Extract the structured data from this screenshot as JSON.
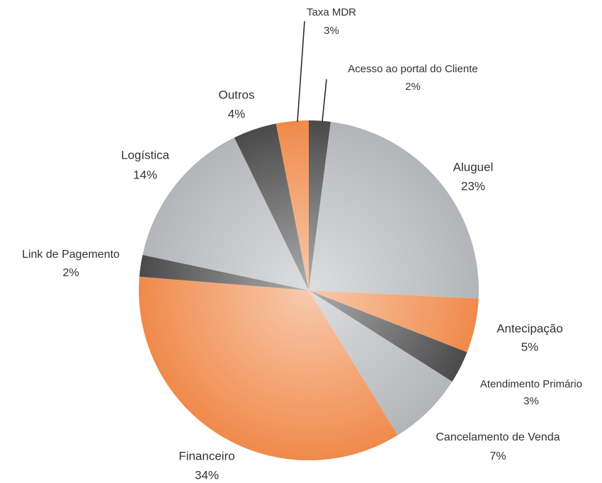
{
  "chart_data": {
    "type": "pie",
    "categories": [
      "Acesso ao portal do Cliente",
      "Aluguel",
      "Antecipação",
      "Atendimento Primário",
      "Cancelamento de Venda",
      "Financeiro",
      "Link de Pagemento",
      "Logística",
      "Outros",
      "Taxa MDR"
    ],
    "values": [
      2,
      23,
      5,
      3,
      7,
      34,
      2,
      14,
      4,
      3
    ],
    "value_labels": [
      "2%",
      "23%",
      "5%",
      "3%",
      "7%",
      "34%",
      "2%",
      "14%",
      "4%",
      "3%"
    ],
    "colors": [
      "#4a4a4a",
      "#b3b5b9",
      "#f08a4b",
      "#4a4a4a",
      "#b3b5b9",
      "#f08a4b",
      "#4a4a4a",
      "#b3b5b9",
      "#4a4a4a",
      "#f08a4b"
    ]
  }
}
